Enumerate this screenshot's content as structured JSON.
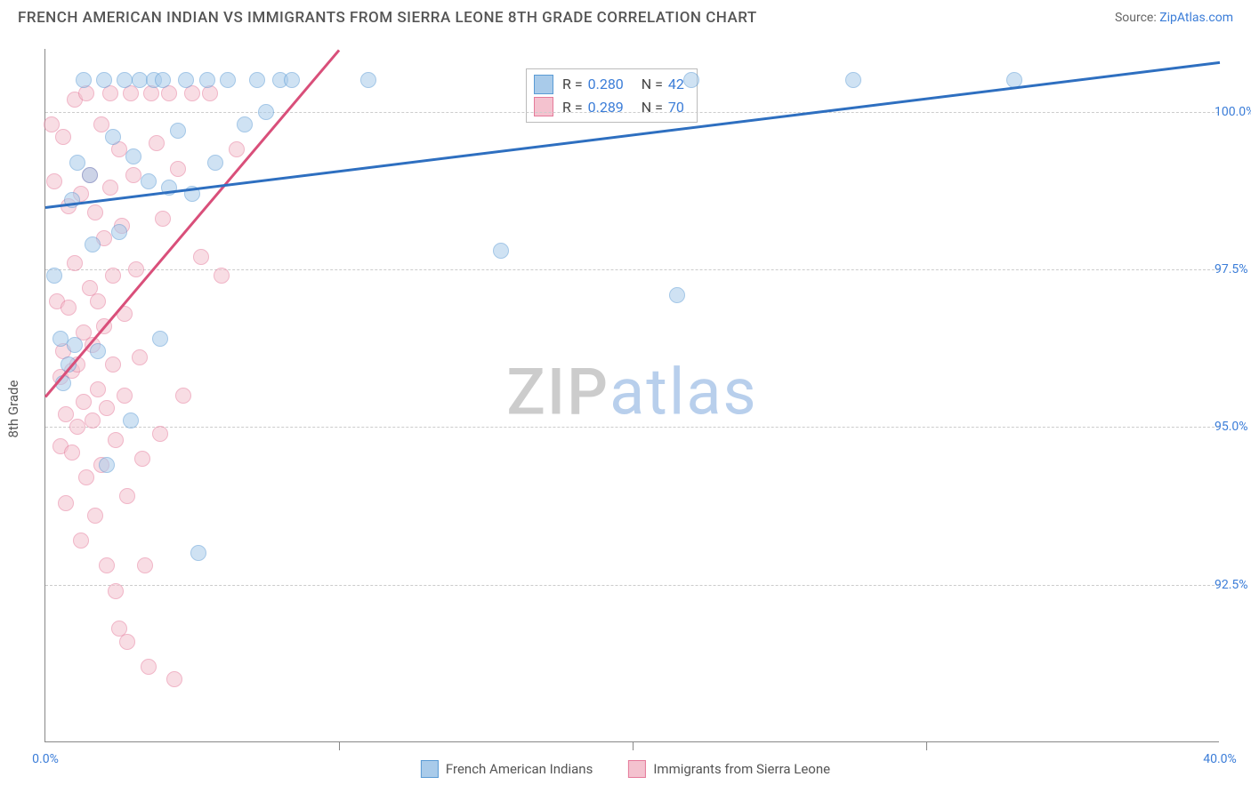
{
  "header": {
    "title": "FRENCH AMERICAN INDIAN VS IMMIGRANTS FROM SIERRA LEONE 8TH GRADE CORRELATION CHART",
    "source_prefix": "Source: ",
    "source_link": "ZipAtlas.com"
  },
  "chart": {
    "type": "scatter",
    "ylabel": "8th Grade",
    "xlim": [
      0,
      40
    ],
    "ylim": [
      90.0,
      101.0
    ],
    "xtick_labels": [
      "0.0%",
      "40.0%"
    ],
    "xtick_positions": [
      0,
      40
    ],
    "xtick_minor": [
      10,
      20,
      30
    ],
    "ytick_labels": [
      "92.5%",
      "95.0%",
      "97.5%",
      "100.0%"
    ],
    "ytick_positions": [
      92.5,
      95.0,
      97.5,
      100.0
    ],
    "background_color": "#ffffff",
    "grid_color": "#cccccc",
    "marker_radius": 9,
    "watermark_text_1": "ZIP",
    "watermark_text_2": "atlas",
    "series": {
      "blue": {
        "label": "French American Indians",
        "R": "0.280",
        "N": "42",
        "color_fill": "#a9cbea",
        "color_stroke": "#5a9bd5",
        "line_color": "#2e6fc0",
        "trendline": {
          "x1": 0,
          "y1": 98.5,
          "x2": 40,
          "y2": 100.8
        },
        "points": [
          [
            0.3,
            97.4
          ],
          [
            0.5,
            96.4
          ],
          [
            0.6,
            95.7
          ],
          [
            0.8,
            96.0
          ],
          [
            0.9,
            98.6
          ],
          [
            1.0,
            96.3
          ],
          [
            1.1,
            99.2
          ],
          [
            1.3,
            100.5
          ],
          [
            1.5,
            99.0
          ],
          [
            1.6,
            97.9
          ],
          [
            1.8,
            96.2
          ],
          [
            2.0,
            100.5
          ],
          [
            2.1,
            94.4
          ],
          [
            2.3,
            99.6
          ],
          [
            2.5,
            98.1
          ],
          [
            2.7,
            100.5
          ],
          [
            2.9,
            95.1
          ],
          [
            3.0,
            99.3
          ],
          [
            3.2,
            100.5
          ],
          [
            3.5,
            98.9
          ],
          [
            3.7,
            100.5
          ],
          [
            3.9,
            96.4
          ],
          [
            4.0,
            100.5
          ],
          [
            4.2,
            98.8
          ],
          [
            4.5,
            99.7
          ],
          [
            4.8,
            100.5
          ],
          [
            5.0,
            98.7
          ],
          [
            5.2,
            93.0
          ],
          [
            5.5,
            100.5
          ],
          [
            5.8,
            99.2
          ],
          [
            6.2,
            100.5
          ],
          [
            6.8,
            99.8
          ],
          [
            7.2,
            100.5
          ],
          [
            7.5,
            100.0
          ],
          [
            8.0,
            100.5
          ],
          [
            8.4,
            100.5
          ],
          [
            11.0,
            100.5
          ],
          [
            15.5,
            97.8
          ],
          [
            22.0,
            100.5
          ],
          [
            21.5,
            97.1
          ],
          [
            27.5,
            100.5
          ],
          [
            33.0,
            100.5
          ]
        ]
      },
      "pink": {
        "label": "Immigrants from Sierra Leone",
        "R": "0.289",
        "N": "70",
        "color_fill": "#f4c2cf",
        "color_stroke": "#e57a9a",
        "line_color": "#d94f7a",
        "trendline": {
          "x1": 0,
          "y1": 95.5,
          "x2": 10,
          "y2": 101.0
        },
        "points": [
          [
            0.2,
            99.8
          ],
          [
            0.3,
            98.9
          ],
          [
            0.4,
            97.0
          ],
          [
            0.5,
            95.8
          ],
          [
            0.5,
            94.7
          ],
          [
            0.6,
            99.6
          ],
          [
            0.6,
            96.2
          ],
          [
            0.7,
            95.2
          ],
          [
            0.7,
            93.8
          ],
          [
            0.8,
            98.5
          ],
          [
            0.8,
            96.9
          ],
          [
            0.9,
            95.9
          ],
          [
            0.9,
            94.6
          ],
          [
            1.0,
            100.2
          ],
          [
            1.0,
            97.6
          ],
          [
            1.1,
            96.0
          ],
          [
            1.1,
            95.0
          ],
          [
            1.2,
            93.2
          ],
          [
            1.2,
            98.7
          ],
          [
            1.3,
            96.5
          ],
          [
            1.3,
            95.4
          ],
          [
            1.4,
            94.2
          ],
          [
            1.4,
            100.3
          ],
          [
            1.5,
            99.0
          ],
          [
            1.5,
            97.2
          ],
          [
            1.6,
            96.3
          ],
          [
            1.6,
            95.1
          ],
          [
            1.7,
            93.6
          ],
          [
            1.7,
            98.4
          ],
          [
            1.8,
            97.0
          ],
          [
            1.8,
            95.6
          ],
          [
            1.9,
            94.4
          ],
          [
            1.9,
            99.8
          ],
          [
            2.0,
            98.0
          ],
          [
            2.0,
            96.6
          ],
          [
            2.1,
            95.3
          ],
          [
            2.1,
            92.8
          ],
          [
            2.2,
            100.3
          ],
          [
            2.2,
            98.8
          ],
          [
            2.3,
            97.4
          ],
          [
            2.3,
            96.0
          ],
          [
            2.4,
            94.8
          ],
          [
            2.4,
            92.4
          ],
          [
            2.5,
            91.8
          ],
          [
            2.5,
            99.4
          ],
          [
            2.6,
            98.2
          ],
          [
            2.7,
            96.8
          ],
          [
            2.7,
            95.5
          ],
          [
            2.8,
            93.9
          ],
          [
            2.8,
            91.6
          ],
          [
            2.9,
            100.3
          ],
          [
            3.0,
            99.0
          ],
          [
            3.1,
            97.5
          ],
          [
            3.2,
            96.1
          ],
          [
            3.3,
            94.5
          ],
          [
            3.4,
            92.8
          ],
          [
            3.5,
            91.2
          ],
          [
            3.6,
            100.3
          ],
          [
            3.8,
            99.5
          ],
          [
            3.9,
            94.9
          ],
          [
            4.0,
            98.3
          ],
          [
            4.2,
            100.3
          ],
          [
            4.4,
            91.0
          ],
          [
            4.5,
            99.1
          ],
          [
            4.7,
            95.5
          ],
          [
            5.0,
            100.3
          ],
          [
            5.3,
            97.7
          ],
          [
            5.6,
            100.3
          ],
          [
            6.0,
            97.4
          ],
          [
            6.5,
            99.4
          ]
        ]
      }
    }
  },
  "legend_box": {
    "rows": [
      {
        "swatch_fill": "#a9cbea",
        "swatch_stroke": "#5a9bd5",
        "r_lbl": "R =",
        "r_val": "0.280",
        "n_lbl": "N =",
        "n_val": "42"
      },
      {
        "swatch_fill": "#f4c2cf",
        "swatch_stroke": "#e57a9a",
        "r_lbl": "R =",
        "r_val": "0.289",
        "n_lbl": "N =",
        "n_val": "70"
      }
    ]
  },
  "bottom_legend": {
    "items": [
      {
        "fill": "#a9cbea",
        "stroke": "#5a9bd5",
        "label": "French American Indians"
      },
      {
        "fill": "#f4c2cf",
        "stroke": "#e57a9a",
        "label": "Immigrants from Sierra Leone"
      }
    ]
  }
}
